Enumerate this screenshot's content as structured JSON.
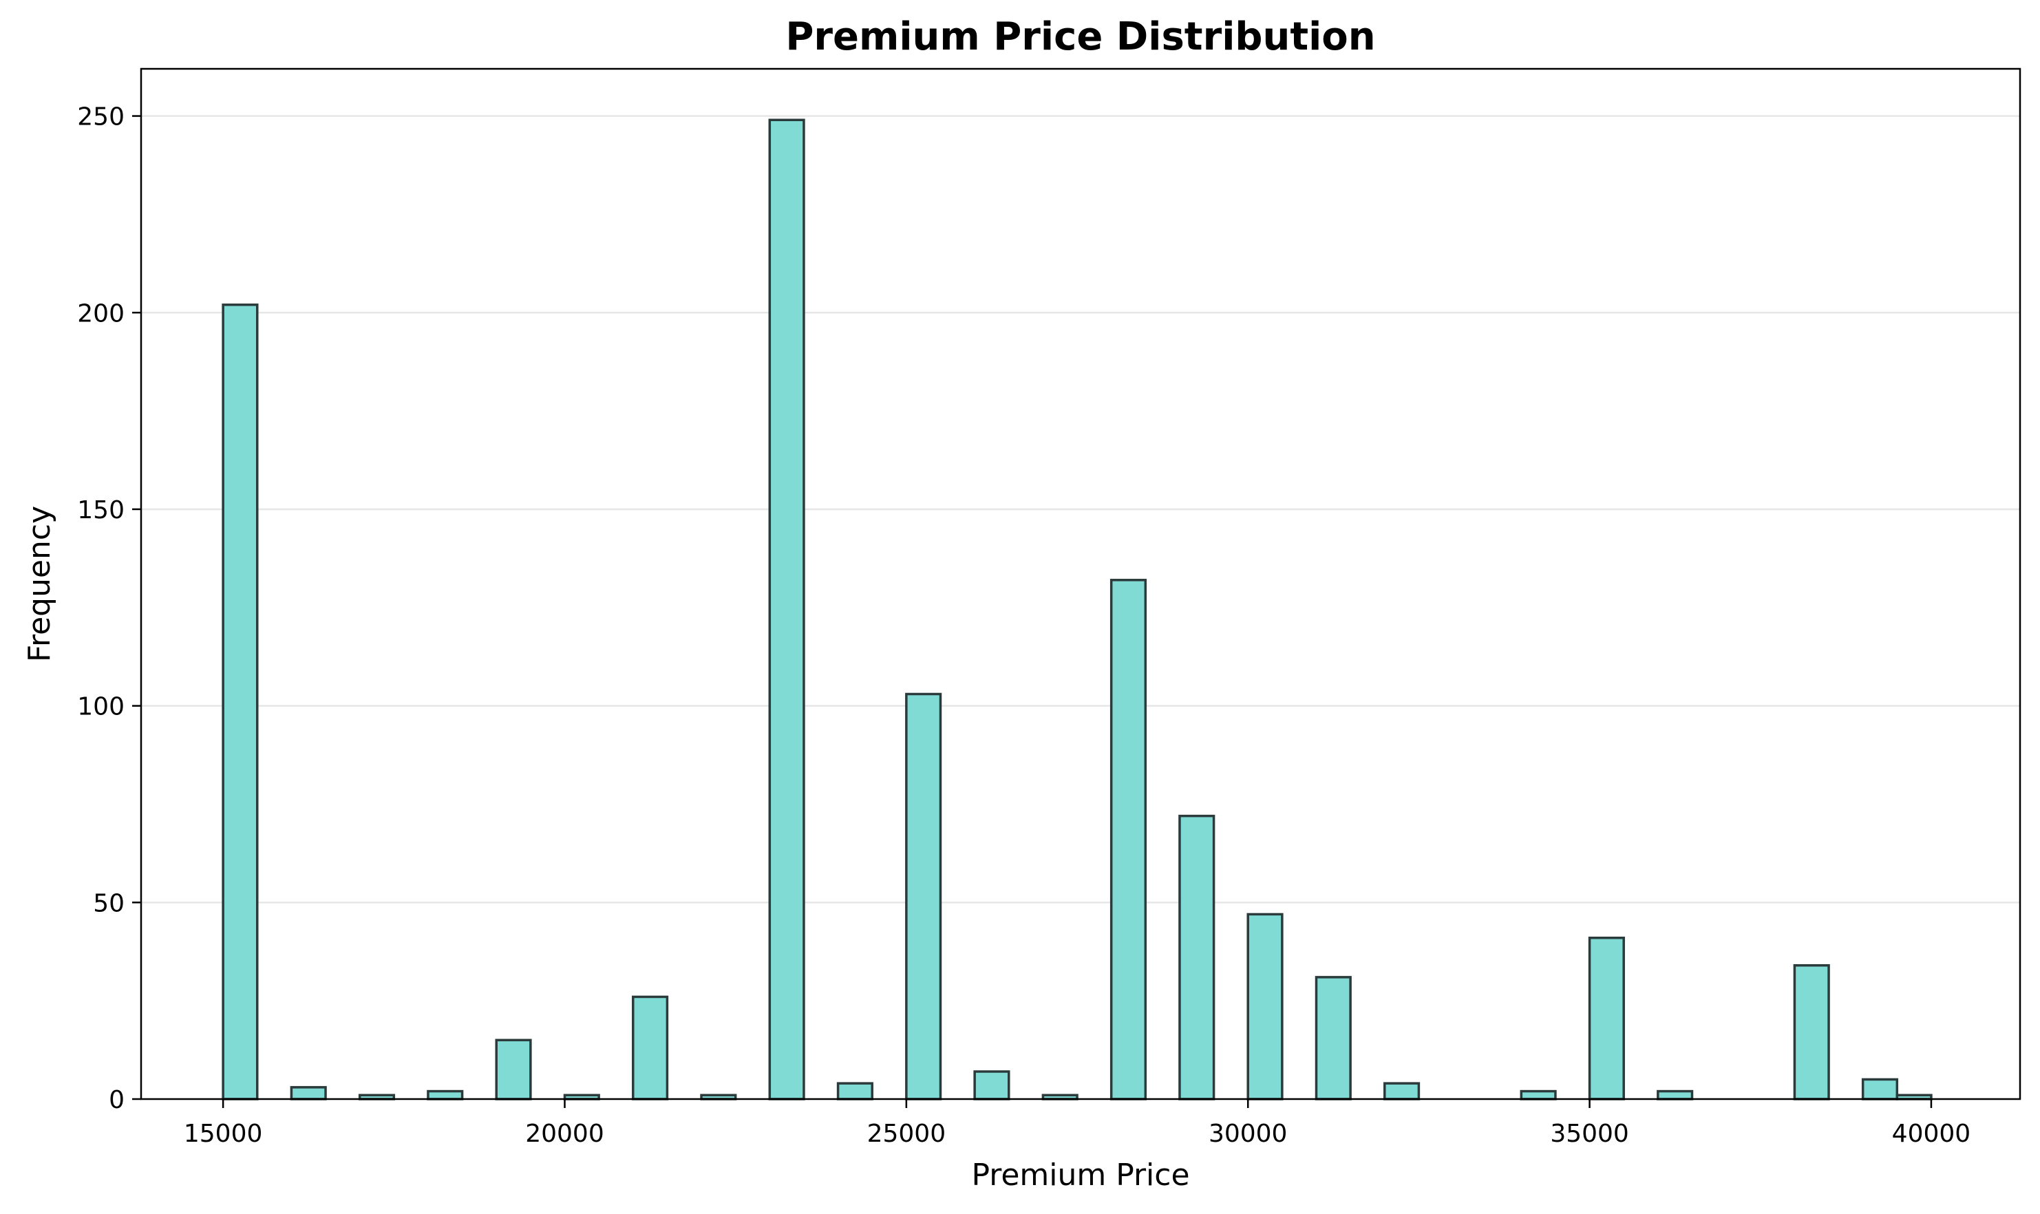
{
  "chart_data": {
    "type": "bar",
    "subtype": "histogram",
    "title": "Premium Price Distribution",
    "xlabel": "Premium Price",
    "ylabel": "Frequency",
    "xlim": [
      13800,
      41300
    ],
    "ylim": [
      0,
      262
    ],
    "bin_width": 500,
    "x_ticks": [
      15000,
      20000,
      25000,
      30000,
      35000,
      40000
    ],
    "y_ticks": [
      0,
      50,
      100,
      150,
      200,
      250
    ],
    "grid": "y",
    "bar_color": "#80dbd5",
    "edge_color": "#2b3a3a",
    "bins": [
      {
        "x_start": 15000,
        "count": 202
      },
      {
        "x_start": 16000,
        "count": 3
      },
      {
        "x_start": 17000,
        "count": 1
      },
      {
        "x_start": 18000,
        "count": 2
      },
      {
        "x_start": 19000,
        "count": 15
      },
      {
        "x_start": 20000,
        "count": 1
      },
      {
        "x_start": 21000,
        "count": 26
      },
      {
        "x_start": 22000,
        "count": 1
      },
      {
        "x_start": 23000,
        "count": 249
      },
      {
        "x_start": 24000,
        "count": 4
      },
      {
        "x_start": 25000,
        "count": 103
      },
      {
        "x_start": 26000,
        "count": 7
      },
      {
        "x_start": 27000,
        "count": 1
      },
      {
        "x_start": 28000,
        "count": 132
      },
      {
        "x_start": 29000,
        "count": 72
      },
      {
        "x_start": 30000,
        "count": 47
      },
      {
        "x_start": 31000,
        "count": 31
      },
      {
        "x_start": 32000,
        "count": 4
      },
      {
        "x_start": 34000,
        "count": 2
      },
      {
        "x_start": 35000,
        "count": 41
      },
      {
        "x_start": 36000,
        "count": 2
      },
      {
        "x_start": 38000,
        "count": 34
      },
      {
        "x_start": 39000,
        "count": 5
      },
      {
        "x_start": 39500,
        "count": 1
      }
    ]
  }
}
